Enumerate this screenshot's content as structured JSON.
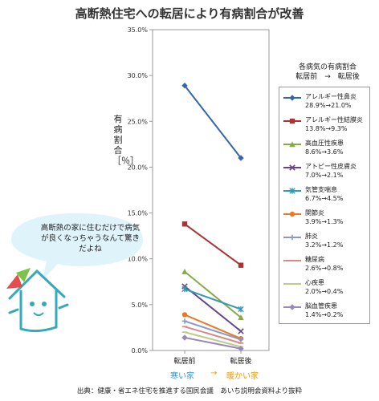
{
  "title": "高断熱住宅への転居により有病割合が改善",
  "ylabel": "有病割合［％］",
  "legend_header_line1": "各病気の有病割合",
  "legend_header_line2": "転居前　→　転居後",
  "x_sublabels": {
    "left": "寒い家",
    "arrow": "→",
    "right": "暖かい家",
    "left_color": "#3399cc",
    "arrow_color": "#f39800",
    "right_color": "#f39800"
  },
  "bubble_text": "高断熱の家に住むだけで病気が良くなっちゃうなんて驚きだよね",
  "source": "出典：健康・省エネ住宅を推進する国民会議　あいち説明会資料より抜粋",
  "chart_data": {
    "type": "line",
    "title": "高断熱住宅への転居により有病割合が改善",
    "xlabel": "",
    "ylabel": "有病割合［％］",
    "categories": [
      "転居前",
      "転居後"
    ],
    "ylim": [
      0,
      35
    ],
    "yticks": [
      "0.0%",
      "5.0%",
      "10.0%",
      "15.0%",
      "20.0%",
      "25.0%",
      "30.0%",
      "35.0%"
    ],
    "yticks_values": [
      0,
      5,
      10,
      15,
      20,
      25,
      30,
      35
    ],
    "grid": false,
    "legend_position": "right",
    "series": [
      {
        "name": "アレルギー性鼻炎",
        "label": "28.9%→21.0%",
        "values": [
          28.9,
          21.0
        ],
        "color": "#3366aa",
        "marker": "diamond"
      },
      {
        "name": "アレルギー性結膜炎",
        "label": "13.8%→9.3%",
        "values": [
          13.8,
          9.3
        ],
        "color": "#aa3333",
        "marker": "square"
      },
      {
        "name": "高血圧性疾患",
        "label": "8.6%→3.6%",
        "values": [
          8.6,
          3.6
        ],
        "color": "#88aa44",
        "marker": "triangle"
      },
      {
        "name": "アトピー性皮膚炎",
        "label": "7.0%→2.1%",
        "values": [
          7.0,
          2.1
        ],
        "color": "#664488",
        "marker": "x"
      },
      {
        "name": "気管支喘息",
        "label": "6.7%→4.5%",
        "values": [
          6.7,
          4.5
        ],
        "color": "#3399bb",
        "marker": "star"
      },
      {
        "name": "関節炎",
        "label": "3.9%→1.3%",
        "values": [
          3.9,
          1.3
        ],
        "color": "#ee7722",
        "marker": "circle"
      },
      {
        "name": "肺炎",
        "label": "3.2%→1.2%",
        "values": [
          3.2,
          1.2
        ],
        "color": "#8899cc",
        "marker": "plus"
      },
      {
        "name": "糖尿病",
        "label": "2.6%→0.8%",
        "values": [
          2.6,
          0.8
        ],
        "color": "#dd8888",
        "marker": "dash"
      },
      {
        "name": "心疾患",
        "label": "2.0%→0.4%",
        "values": [
          2.0,
          0.4
        ],
        "color": "#bbcc88",
        "marker": "dash"
      },
      {
        "name": "脳血管疾患",
        "label": "1.4%→0.2%",
        "values": [
          1.4,
          0.2
        ],
        "color": "#9988bb",
        "marker": "diamond"
      }
    ]
  }
}
